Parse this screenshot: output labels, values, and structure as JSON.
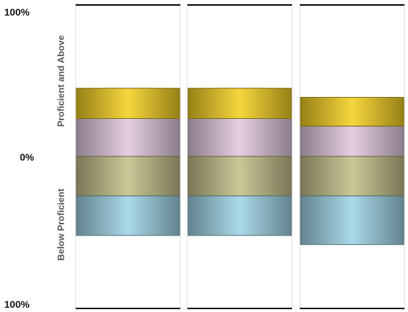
{
  "chart_data": {
    "type": "bar",
    "layout": "diverging-stacked",
    "categories": [
      "",
      "",
      ""
    ],
    "y_tick_labels": {
      "top": "100%",
      "center": "0%",
      "bottom": "100%"
    },
    "axis_titles": {
      "upper": "Proficient and Above",
      "lower": "Below Proficient"
    },
    "ylim": [
      -100,
      100
    ],
    "grid": false,
    "series": [
      {
        "side": "above",
        "color": "#e2c9e0",
        "values": [
          25,
          25,
          20
        ]
      },
      {
        "side": "above",
        "color": "#f4d024",
        "values": [
          20,
          20,
          19
        ]
      },
      {
        "side": "below",
        "color": "#c3c08a",
        "values": [
          26,
          26,
          26
        ]
      },
      {
        "side": "below",
        "color": "#9fd4e6",
        "values": [
          26,
          26,
          32
        ]
      }
    ]
  }
}
